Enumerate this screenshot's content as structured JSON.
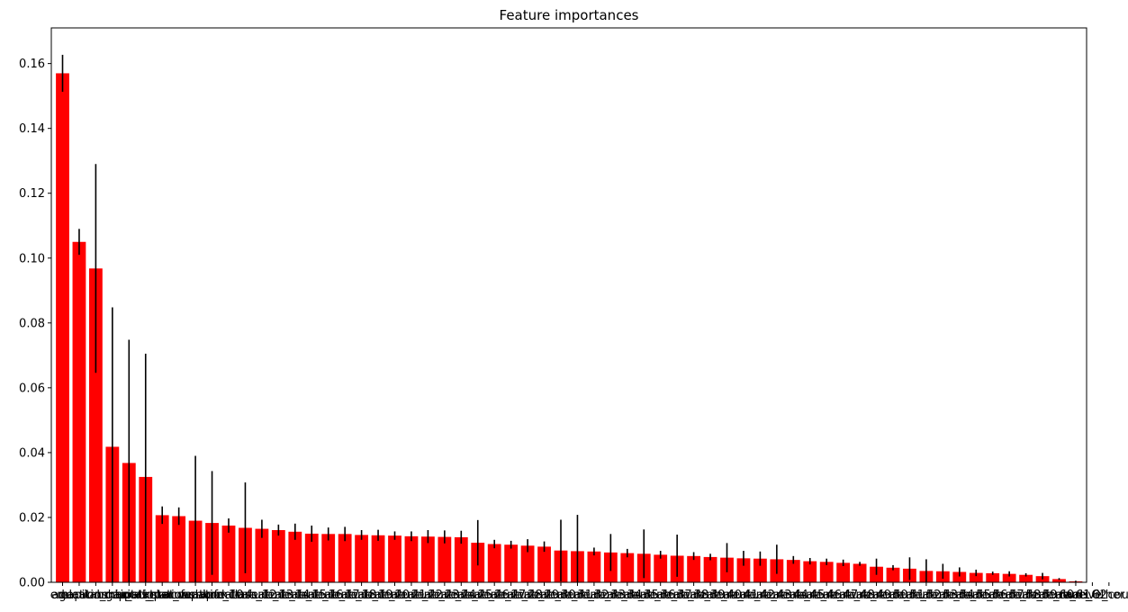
{
  "chart_data": {
    "type": "bar",
    "title": "Feature importances",
    "xlabel": "",
    "ylabel": "",
    "ylim": [
      0.0,
      0.171
    ],
    "yticks": [
      0.0,
      0.02,
      0.04,
      0.06,
      0.08,
      0.1,
      0.12,
      0.14,
      0.16
    ],
    "ytick_labels": [
      "0.00",
      "0.02",
      "0.04",
      "0.06",
      "0.08",
      "0.10",
      "0.12",
      "0.14",
      "0.16"
    ],
    "bar_color": "#ff0000",
    "errorbar_color": "#000000",
    "grid": false,
    "categories": [
      "age",
      "education",
      "capital_gain",
      "relationship_status",
      "occupation",
      "marital_status",
      "hours_per_week",
      "relationship",
      "occupation",
      "feature_10",
      "workclass",
      "feature_12",
      "feature_13",
      "feature_14",
      "feature_15",
      "feature_16",
      "feature_17",
      "feature_18",
      "feature_19",
      "feature_20",
      "feature_21",
      "feature_22",
      "feature_23",
      "feature_24",
      "feature_25",
      "feature_26",
      "feature_27",
      "feature_28",
      "feature_29",
      "feature_30",
      "feature_31",
      "feature_32",
      "feature_33",
      "feature_34",
      "feature_35",
      "feature_36",
      "feature_37",
      "feature_38",
      "feature_39",
      "feature_40",
      "feature_41",
      "feature_42",
      "feature_43",
      "feature_44",
      "feature_45",
      "feature_46",
      "feature_47",
      "feature_48",
      "feature_49",
      "feature_50",
      "feature_51",
      "feature_52",
      "feature_53",
      "feature_54",
      "feature_55",
      "feature_56",
      "feature_57",
      "feature_58",
      "feature_59",
      "feature_60",
      "feature_61",
      "feature_62",
      "race_Other",
      "native_country"
    ],
    "values": [
      0.157,
      0.105,
      0.0968,
      0.0418,
      0.0368,
      0.0325,
      0.0207,
      0.0204,
      0.019,
      0.0183,
      0.0175,
      0.0168,
      0.0165,
      0.0161,
      0.0156,
      0.015,
      0.0149,
      0.0149,
      0.0146,
      0.0145,
      0.0144,
      0.0142,
      0.0141,
      0.014,
      0.0139,
      0.0122,
      0.0118,
      0.0116,
      0.0113,
      0.011,
      0.0098,
      0.0096,
      0.0095,
      0.0092,
      0.009,
      0.0088,
      0.0085,
      0.0082,
      0.0081,
      0.0078,
      0.0076,
      0.0074,
      0.0073,
      0.0071,
      0.0069,
      0.0065,
      0.0063,
      0.006,
      0.0057,
      0.0048,
      0.0045,
      0.0042,
      0.0035,
      0.0034,
      0.0032,
      0.0029,
      0.0028,
      0.0026,
      0.0023,
      0.0019,
      0.001,
      0.0003,
      0.0,
      0.0
    ],
    "errors": [
      0.0057,
      0.004,
      0.0322,
      0.043,
      0.038,
      0.038,
      0.0027,
      0.0027,
      0.02,
      0.016,
      0.0022,
      0.014,
      0.0028,
      0.0017,
      0.0025,
      0.0025,
      0.002,
      0.0022,
      0.0015,
      0.0017,
      0.0013,
      0.0015,
      0.002,
      0.002,
      0.002,
      0.007,
      0.0013,
      0.0012,
      0.002,
      0.0016,
      0.0095,
      0.0112,
      0.0012,
      0.0057,
      0.0013,
      0.0075,
      0.0012,
      0.0065,
      0.0012,
      0.001,
      0.0045,
      0.0023,
      0.0022,
      0.0045,
      0.0012,
      0.001,
      0.001,
      0.001,
      0.0006,
      0.0025,
      0.0008,
      0.0035,
      0.0036,
      0.0023,
      0.0014,
      0.001,
      0.0005,
      0.0008,
      0.0005,
      0.001,
      0.0003,
      0.0002,
      0.0,
      0.0
    ]
  }
}
